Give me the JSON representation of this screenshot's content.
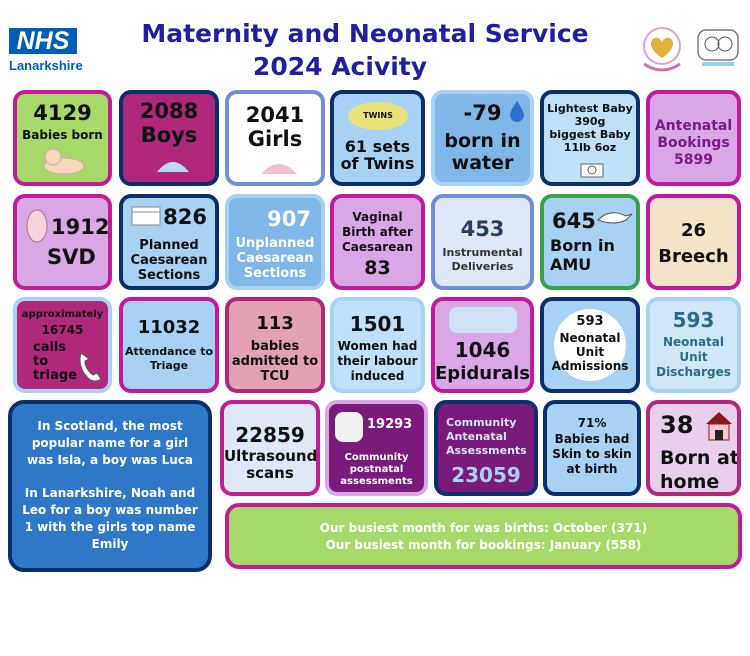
{
  "header": {
    "title_line1": "Maternity and Neonatal Service",
    "title_line2": "2024 Acivity",
    "logo_nhs": "NHS",
    "logo_area": "Lanarkshire"
  },
  "tiles": {
    "babies_born": {
      "value": "4129",
      "label": "Babies born"
    },
    "boys": {
      "value": "2088",
      "label": "Boys"
    },
    "girls": {
      "value": "2041",
      "label": "Girls"
    },
    "twins": {
      "value": "61 sets",
      "label": "of Twins",
      "icon_text": "TWINS"
    },
    "water": {
      "value": "79",
      "label": "born in water"
    },
    "weights": {
      "line1": "Lightest Baby",
      "line2": "390g",
      "line3": "biggest Baby",
      "line4": "11lb 6oz"
    },
    "antenatal_bookings": {
      "label": "Antenatal Bookings",
      "value": "5899"
    },
    "svd": {
      "value": "1912",
      "label": "SVD"
    },
    "planned_cs": {
      "value": "826",
      "label": "Planned Caesarean Sections"
    },
    "unplanned_cs": {
      "value": "907",
      "label": "Unplanned Caesarean Sections"
    },
    "vbac": {
      "label": "Vaginal Birth after Caesarean",
      "value": "83"
    },
    "instrumental": {
      "value": "453",
      "label": "Instrumental Deliveries"
    },
    "amu": {
      "value": "645",
      "label": "Born in AMU"
    },
    "breech": {
      "value": "26",
      "label": "Breech"
    },
    "triage_calls": {
      "prefix": "approximately",
      "value": "16745",
      "label": "calls to triage"
    },
    "triage_attendance": {
      "value": "11032",
      "label": "Attendance to Triage"
    },
    "tcu": {
      "value": "113",
      "label": "babies admitted to TCU"
    },
    "induced": {
      "value": "1501",
      "label": "Women had their labour induced"
    },
    "epidurals": {
      "value": "1046",
      "label": "Epidurals"
    },
    "nnu_admissions": {
      "value": "593",
      "label": "Neonatal Unit Admissions"
    },
    "nnu_discharges": {
      "value": "593",
      "label": "Neonatal Unit Discharges"
    },
    "names": {
      "para1": "In Scotland, the most popular name for a girl was Isla, a boy was Luca",
      "para2": "In Lanarkshire, Noah and Leo for a boy was number 1 with the girls top name Emily"
    },
    "ultrasound": {
      "value": "22859",
      "label": "Ultrasound scans"
    },
    "postnatal": {
      "value": "19293",
      "label": "Community postnatal assessments"
    },
    "antenatal_assess": {
      "label": "Community Antenatal Assessments",
      "value": "23059"
    },
    "skin": {
      "line1": "71%",
      "line2": "Babies had Skin to skin at birth"
    },
    "home": {
      "value": "38",
      "label": "Born at home"
    },
    "busiest": {
      "line1": "Our busiest month for was births: October (371)",
      "line2": "Our busiest month for bookings:  January (558)"
    }
  },
  "colors": {
    "title": "#1f1fa0",
    "navy": "#0b2f6b",
    "magenta": "#c21b9a",
    "lilac": "#d9a6e6",
    "light_blue": "#a7d2f4",
    "green": "#a6d96a",
    "pink": "#e3a1b4"
  },
  "icons": [
    "baby-icon",
    "twins-icon",
    "water-drop-icon",
    "scale-icon",
    "stork-icon",
    "pregnancy-icon",
    "house-icon",
    "logo-emblems"
  ]
}
